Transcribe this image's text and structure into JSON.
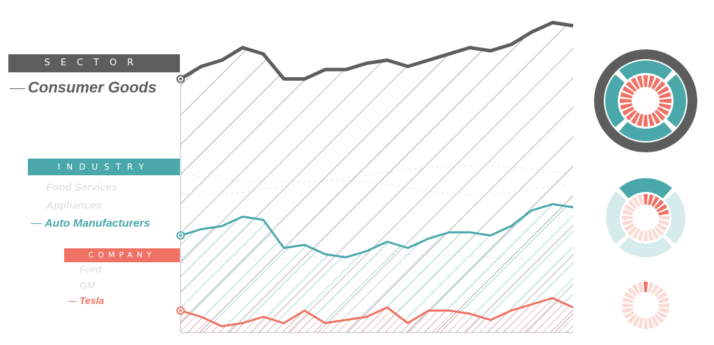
{
  "sections": {
    "sector": {
      "label": "SECTOR",
      "items": [
        {
          "name": "Consumer Goods",
          "selected": true
        }
      ],
      "color": "#5d5d5d"
    },
    "industry": {
      "label": "INDUSTRY",
      "items": [
        {
          "name": "Food Services",
          "selected": false
        },
        {
          "name": "Appliances",
          "selected": false
        },
        {
          "name": "Auto Manufacturers",
          "selected": true
        }
      ],
      "color": "#4aa8ab"
    },
    "company": {
      "label": "COMPANY",
      "items": [
        {
          "name": "Ford",
          "selected": false
        },
        {
          "name": "GM",
          "selected": false
        },
        {
          "name": "Tesla",
          "selected": true
        }
      ],
      "color": "#ef7265"
    }
  },
  "chart_data": {
    "type": "area",
    "hatched": true,
    "x": [
      0,
      1,
      2,
      3,
      4,
      5,
      6,
      7,
      8,
      9,
      10,
      11,
      12,
      13,
      14,
      15,
      16,
      17,
      18,
      19
    ],
    "ylim": [
      0,
      100
    ],
    "grid": false,
    "series": [
      {
        "name": "Consumer Goods",
        "color": "#5d5d5d",
        "values": [
          81,
          85,
          87,
          91,
          89,
          81,
          81,
          84,
          84,
          86,
          87,
          85,
          87,
          89,
          91,
          90,
          92,
          96,
          99,
          98
        ]
      },
      {
        "name": "Auto Manufacturers",
        "color": "#4aa8ab",
        "values": [
          31,
          33,
          34,
          37,
          36,
          27,
          28,
          25,
          24,
          26,
          29,
          27,
          30,
          32,
          32,
          31,
          34,
          39,
          41,
          40
        ]
      },
      {
        "name": "Tesla",
        "color": "#ef7265",
        "values": [
          7,
          5,
          2,
          3,
          5,
          3,
          7,
          3,
          4,
          5,
          8,
          3,
          7,
          7,
          6,
          4,
          7,
          9,
          11,
          8
        ]
      }
    ]
  },
  "donuts": [
    {
      "name": "sector-donut",
      "outer_color": "#5d5d5d",
      "middle_color": "#4aa8ab",
      "inner_color": "#ef7265"
    },
    {
      "name": "industry-donut",
      "middle_share": 0.25,
      "inner_share": 0.25,
      "middle_color": "#4aa8ab",
      "inner_color": "#ef7265",
      "pale_middle": "#d6ebec",
      "pale_inner": "#fbdad6"
    },
    {
      "name": "company-donut",
      "inner_share": 0.05,
      "inner_color": "#ef7265",
      "pale_inner": "#fbdad6"
    }
  ]
}
